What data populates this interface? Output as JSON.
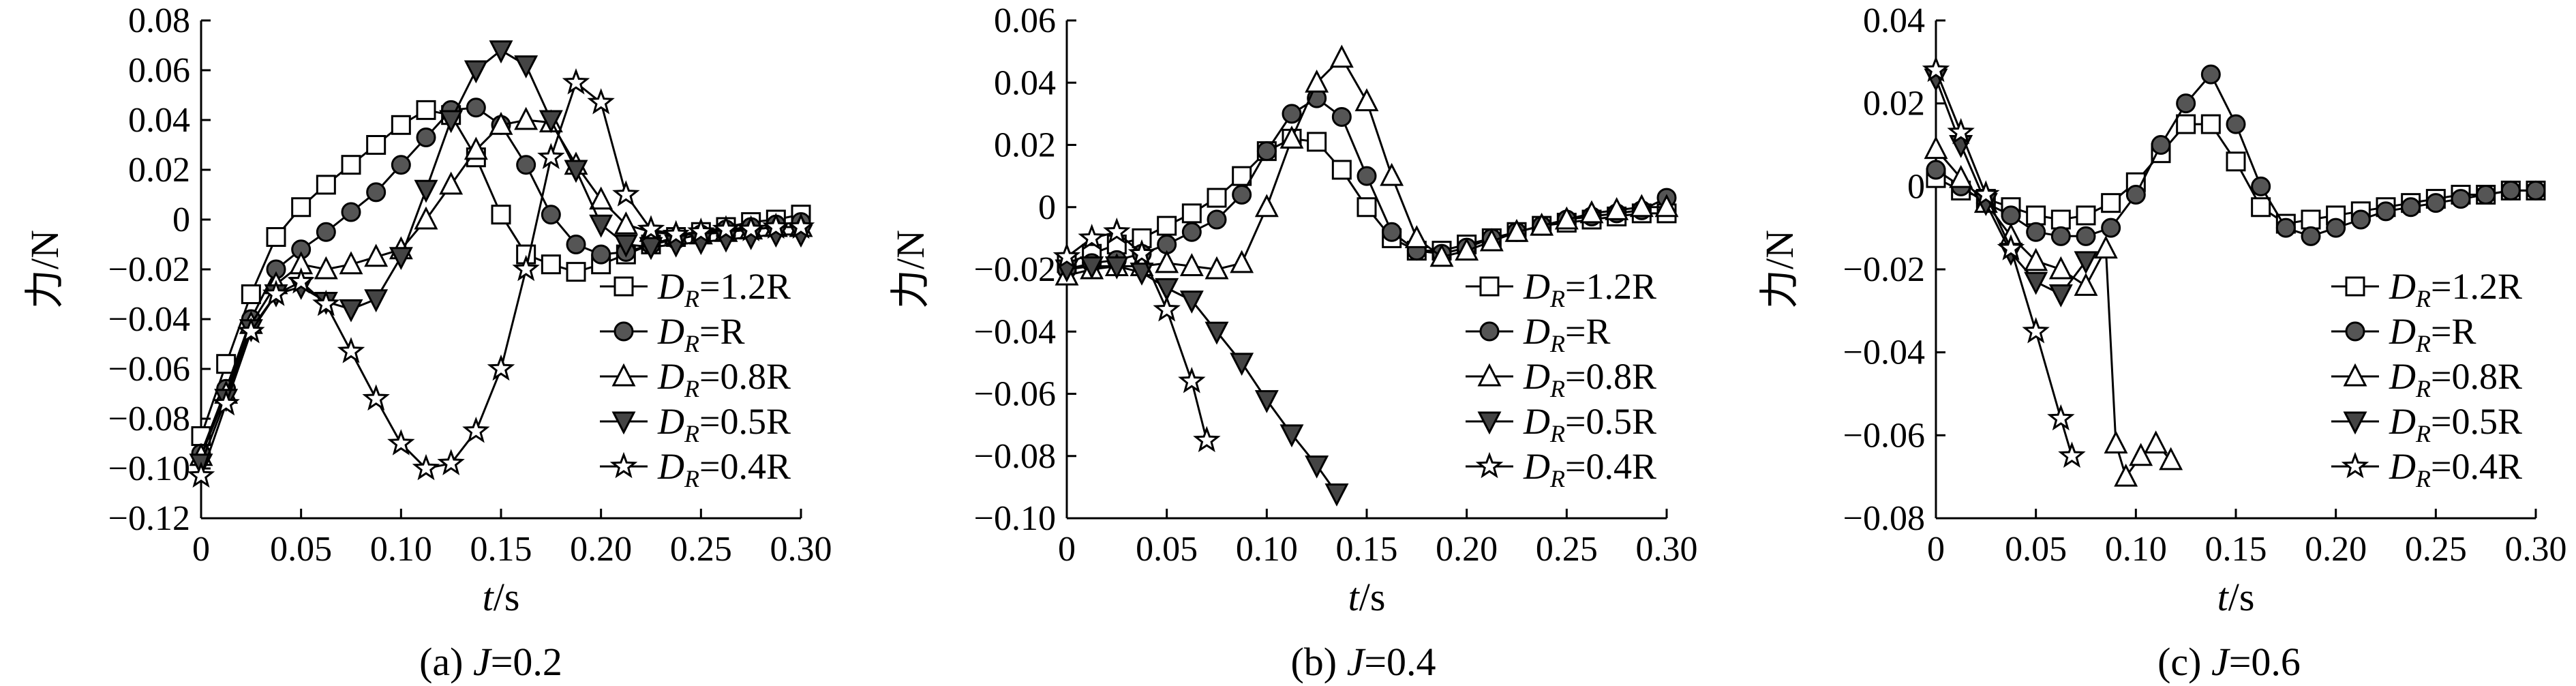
{
  "chart_data": [
    {
      "type": "line",
      "caption_prefix": "(a) ",
      "caption_var": "J",
      "caption_suffix": "=0.2",
      "ylabel": "力/N",
      "xlabel_var": "t",
      "xlabel_suffix": "/s",
      "xlim": [
        0,
        0.3
      ],
      "ylim": [
        -0.12,
        0.08
      ],
      "xticks": [
        0,
        0.05,
        0.1,
        0.15,
        0.2,
        0.25,
        0.3
      ],
      "xtick_labels": [
        "0",
        "0.05",
        "0.10",
        "0.15",
        "0.20",
        "0.25",
        "0.30"
      ],
      "yticks": [
        -0.12,
        -0.1,
        -0.08,
        -0.06,
        -0.04,
        -0.02,
        0,
        0.02,
        0.04,
        0.06,
        0.08
      ],
      "ytick_labels": [
        "−0.12",
        "−0.10",
        "−0.08",
        "−0.06",
        "−0.04",
        "−0.02",
        "0",
        "0.02",
        "0.04",
        "0.06",
        "0.08"
      ],
      "legend_position": "right",
      "series": [
        {
          "name": "D_R=1.2R",
          "legend_suffix": "=1.2R",
          "marker": "square",
          "x": [
            0,
            0.0125,
            0.025,
            0.0375,
            0.05,
            0.0625,
            0.075,
            0.0875,
            0.1,
            0.1125,
            0.125,
            0.1375,
            0.15,
            0.1625,
            0.175,
            0.1875,
            0.2,
            0.2125,
            0.225,
            0.2375,
            0.25,
            0.2625,
            0.275,
            0.2875,
            0.3
          ],
          "y": [
            -0.087,
            -0.058,
            -0.03,
            -0.007,
            0.005,
            0.014,
            0.022,
            0.03,
            0.038,
            0.044,
            0.042,
            0.025,
            0.002,
            -0.014,
            -0.018,
            -0.021,
            -0.018,
            -0.014,
            -0.01,
            -0.007,
            -0.005,
            -0.003,
            -0.001,
            0.0,
            0.002
          ]
        },
        {
          "name": "D_R=R",
          "legend_suffix": "=R",
          "marker": "circle",
          "x": [
            0,
            0.0125,
            0.025,
            0.0375,
            0.05,
            0.0625,
            0.075,
            0.0875,
            0.1,
            0.1125,
            0.125,
            0.1375,
            0.15,
            0.1625,
            0.175,
            0.1875,
            0.2,
            0.2125,
            0.225,
            0.2375,
            0.25,
            0.2625,
            0.275,
            0.2875,
            0.3
          ],
          "y": [
            -0.094,
            -0.068,
            -0.04,
            -0.02,
            -0.012,
            -0.005,
            0.003,
            0.011,
            0.022,
            0.033,
            0.044,
            0.045,
            0.038,
            0.022,
            0.002,
            -0.01,
            -0.014,
            -0.013,
            -0.01,
            -0.008,
            -0.006,
            -0.004,
            -0.003,
            -0.002,
            -0.001
          ]
        },
        {
          "name": "D_R=0.8R",
          "legend_suffix": "=0.8R",
          "marker": "triangle",
          "x": [
            0,
            0.0125,
            0.025,
            0.0375,
            0.05,
            0.0625,
            0.075,
            0.0875,
            0.1,
            0.1125,
            0.125,
            0.1375,
            0.15,
            0.1625,
            0.175,
            0.1875,
            0.2,
            0.2125,
            0.225,
            0.2375,
            0.25,
            0.2625,
            0.275,
            0.2875,
            0.3
          ],
          "y": [
            -0.095,
            -0.07,
            -0.042,
            -0.026,
            -0.018,
            -0.02,
            -0.018,
            -0.015,
            -0.012,
            0.0,
            0.014,
            0.028,
            0.038,
            0.04,
            0.039,
            0.022,
            0.008,
            -0.002,
            -0.005,
            -0.006,
            -0.006,
            -0.005,
            -0.004,
            -0.003,
            -0.003
          ]
        },
        {
          "name": "D_R=0.5R",
          "legend_suffix": "=0.5R",
          "marker": "triangle-down",
          "x": [
            0,
            0.0125,
            0.025,
            0.0375,
            0.05,
            0.0625,
            0.075,
            0.0875,
            0.1,
            0.1125,
            0.125,
            0.1375,
            0.15,
            0.1625,
            0.175,
            0.1875,
            0.2,
            0.2125,
            0.225,
            0.2375,
            0.25,
            0.2625,
            0.275,
            0.2875,
            0.3
          ],
          "y": [
            -0.098,
            -0.072,
            -0.044,
            -0.03,
            -0.027,
            -0.033,
            -0.036,
            -0.032,
            -0.015,
            0.012,
            0.04,
            0.06,
            0.068,
            0.062,
            0.04,
            0.02,
            -0.002,
            -0.01,
            -0.011,
            -0.01,
            -0.009,
            -0.008,
            -0.007,
            -0.006,
            -0.006
          ]
        },
        {
          "name": "D_R=0.4R",
          "legend_suffix": "=0.4R",
          "marker": "star",
          "x": [
            0,
            0.0125,
            0.025,
            0.0375,
            0.05,
            0.0625,
            0.075,
            0.0875,
            0.1,
            0.1125,
            0.125,
            0.1375,
            0.15,
            0.1625,
            0.175,
            0.1875,
            0.2,
            0.2125,
            0.225,
            0.2375,
            0.25,
            0.2625,
            0.275,
            0.2875,
            0.3
          ],
          "y": [
            -0.103,
            -0.074,
            -0.045,
            -0.03,
            -0.025,
            -0.034,
            -0.053,
            -0.072,
            -0.09,
            -0.1,
            -0.098,
            -0.085,
            -0.06,
            -0.02,
            0.025,
            0.055,
            0.047,
            0.01,
            -0.004,
            -0.006,
            -0.005,
            -0.004,
            -0.004,
            -0.003,
            -0.003
          ]
        }
      ]
    },
    {
      "type": "line",
      "caption_prefix": "(b) ",
      "caption_var": "J",
      "caption_suffix": "=0.4",
      "ylabel": "力/N",
      "xlabel_var": "t",
      "xlabel_suffix": "/s",
      "xlim": [
        0,
        0.3
      ],
      "ylim": [
        -0.1,
        0.06
      ],
      "xticks": [
        0,
        0.05,
        0.1,
        0.15,
        0.2,
        0.25,
        0.3
      ],
      "xtick_labels": [
        "0",
        "0.05",
        "0.10",
        "0.15",
        "0.20",
        "0.25",
        "0.30"
      ],
      "yticks": [
        -0.1,
        -0.08,
        -0.06,
        -0.04,
        -0.02,
        0,
        0.02,
        0.04,
        0.06
      ],
      "ytick_labels": [
        "−0.10",
        "−0.08",
        "−0.06",
        "−0.04",
        "−0.02",
        "0",
        "0.02",
        "0.04",
        "0.06"
      ],
      "legend_position": "right",
      "series": [
        {
          "name": "D_R=1.2R",
          "legend_suffix": "=1.2R",
          "marker": "square",
          "x": [
            0,
            0.0125,
            0.025,
            0.0375,
            0.05,
            0.0625,
            0.075,
            0.0875,
            0.1,
            0.1125,
            0.125,
            0.1375,
            0.15,
            0.1625,
            0.175,
            0.1875,
            0.2,
            0.2125,
            0.225,
            0.2375,
            0.25,
            0.2625,
            0.275,
            0.2875,
            0.3
          ],
          "y": [
            -0.018,
            -0.015,
            -0.012,
            -0.01,
            -0.006,
            -0.002,
            0.003,
            0.01,
            0.018,
            0.022,
            0.021,
            0.012,
            0.0,
            -0.01,
            -0.014,
            -0.014,
            -0.012,
            -0.01,
            -0.008,
            -0.006,
            -0.005,
            -0.004,
            -0.003,
            -0.002,
            -0.002
          ]
        },
        {
          "name": "D_R=R",
          "legend_suffix": "=R",
          "marker": "circle",
          "x": [
            0,
            0.0125,
            0.025,
            0.0375,
            0.05,
            0.0625,
            0.075,
            0.0875,
            0.1,
            0.1125,
            0.125,
            0.1375,
            0.15,
            0.1625,
            0.175,
            0.1875,
            0.2,
            0.2125,
            0.225,
            0.2375,
            0.25,
            0.2625,
            0.275,
            0.2875,
            0.3
          ],
          "y": [
            -0.02,
            -0.018,
            -0.017,
            -0.015,
            -0.012,
            -0.008,
            -0.004,
            0.004,
            0.018,
            0.03,
            0.035,
            0.029,
            0.01,
            -0.008,
            -0.014,
            -0.015,
            -0.013,
            -0.01,
            -0.008,
            -0.006,
            -0.004,
            -0.003,
            -0.002,
            -0.001,
            0.003
          ]
        },
        {
          "name": "D_R=0.8R",
          "legend_suffix": "=0.8R",
          "marker": "triangle",
          "x": [
            0,
            0.0125,
            0.025,
            0.0375,
            0.05,
            0.0625,
            0.075,
            0.0875,
            0.1,
            0.1125,
            0.125,
            0.1375,
            0.15,
            0.1625,
            0.175,
            0.1875,
            0.2,
            0.2125,
            0.225,
            0.2375,
            0.25,
            0.2625,
            0.275,
            0.2875,
            0.3
          ],
          "y": [
            -0.022,
            -0.02,
            -0.019,
            -0.019,
            -0.018,
            -0.019,
            -0.02,
            -0.018,
            0.0,
            0.022,
            0.04,
            0.048,
            0.034,
            0.01,
            -0.01,
            -0.016,
            -0.014,
            -0.011,
            -0.008,
            -0.006,
            -0.004,
            -0.002,
            -0.001,
            0.0,
            0.0
          ]
        },
        {
          "name": "D_R=0.5R",
          "legend_suffix": "=0.5R",
          "marker": "triangle-down",
          "x": [
            0,
            0.0125,
            0.025,
            0.0375,
            0.05,
            0.0625,
            0.075,
            0.0875,
            0.1,
            0.1125,
            0.125,
            0.135
          ],
          "y": [
            -0.02,
            -0.019,
            -0.019,
            -0.021,
            -0.026,
            -0.03,
            -0.04,
            -0.05,
            -0.062,
            -0.073,
            -0.083,
            -0.092
          ]
        },
        {
          "name": "D_R=0.4R",
          "legend_suffix": "=0.4R",
          "marker": "star",
          "x": [
            0,
            0.0125,
            0.025,
            0.0375,
            0.05,
            0.0625,
            0.07
          ],
          "y": [
            -0.016,
            -0.01,
            -0.008,
            -0.015,
            -0.033,
            -0.056,
            -0.075
          ]
        }
      ]
    },
    {
      "type": "line",
      "caption_prefix": "(c) ",
      "caption_var": "J",
      "caption_suffix": "=0.6",
      "ylabel": "力/N",
      "xlabel_var": "t",
      "xlabel_suffix": "/s",
      "xlim": [
        0,
        0.3
      ],
      "ylim": [
        -0.08,
        0.04
      ],
      "xticks": [
        0,
        0.05,
        0.1,
        0.15,
        0.2,
        0.25,
        0.3
      ],
      "xtick_labels": [
        "0",
        "0.05",
        "0.10",
        "0.15",
        "0.20",
        "0.25",
        "0.30"
      ],
      "yticks": [
        -0.08,
        -0.06,
        -0.04,
        -0.02,
        0,
        0.02,
        0.04
      ],
      "ytick_labels": [
        "−0.08",
        "−0.06",
        "−0.04",
        "−0.02",
        "0",
        "0.02",
        "0.04"
      ],
      "legend_position": "right",
      "series": [
        {
          "name": "D_R=1.2R",
          "legend_suffix": "=1.2R",
          "marker": "square",
          "x": [
            0,
            0.0125,
            0.025,
            0.0375,
            0.05,
            0.0625,
            0.075,
            0.0875,
            0.1,
            0.1125,
            0.125,
            0.1375,
            0.15,
            0.1625,
            0.175,
            0.1875,
            0.2,
            0.2125,
            0.225,
            0.2375,
            0.25,
            0.2625,
            0.275,
            0.2875,
            0.3
          ],
          "y": [
            0.002,
            -0.001,
            -0.003,
            -0.005,
            -0.007,
            -0.008,
            -0.007,
            -0.004,
            0.001,
            0.008,
            0.015,
            0.015,
            0.006,
            -0.005,
            -0.009,
            -0.008,
            -0.007,
            -0.006,
            -0.005,
            -0.004,
            -0.003,
            -0.002,
            -0.002,
            -0.001,
            -0.001
          ]
        },
        {
          "name": "D_R=R",
          "legend_suffix": "=R",
          "marker": "circle",
          "x": [
            0,
            0.0125,
            0.025,
            0.0375,
            0.05,
            0.0625,
            0.075,
            0.0875,
            0.1,
            0.1125,
            0.125,
            0.1375,
            0.15,
            0.1625,
            0.175,
            0.1875,
            0.2,
            0.2125,
            0.225,
            0.2375,
            0.25,
            0.2625,
            0.275,
            0.2875,
            0.3
          ],
          "y": [
            0.004,
            0.0,
            -0.004,
            -0.007,
            -0.011,
            -0.012,
            -0.012,
            -0.01,
            -0.002,
            0.01,
            0.02,
            0.027,
            0.015,
            0.0,
            -0.01,
            -0.012,
            -0.01,
            -0.008,
            -0.006,
            -0.005,
            -0.004,
            -0.003,
            -0.002,
            -0.001,
            -0.001
          ]
        },
        {
          "name": "D_R=0.8R",
          "legend_suffix": "=0.8R",
          "marker": "triangle",
          "x": [
            0,
            0.0125,
            0.025,
            0.0375,
            0.05,
            0.0625,
            0.075,
            0.085,
            0.09,
            0.095,
            0.1025,
            0.11,
            0.1175
          ],
          "y": [
            0.009,
            0.002,
            -0.004,
            -0.012,
            -0.018,
            -0.02,
            -0.024,
            -0.015,
            -0.062,
            -0.07,
            -0.065,
            -0.062,
            -0.066
          ]
        },
        {
          "name": "D_R=0.5R",
          "legend_suffix": "=0.5R",
          "marker": "triangle-down",
          "x": [
            0,
            0.0125,
            0.025,
            0.0375,
            0.05,
            0.0625,
            0.075
          ],
          "y": [
            0.026,
            0.01,
            -0.004,
            -0.016,
            -0.023,
            -0.026,
            -0.018
          ]
        },
        {
          "name": "D_R=0.4R",
          "legend_suffix": "=0.4R",
          "marker": "star",
          "x": [
            0,
            0.0125,
            0.025,
            0.0375,
            0.05,
            0.0625,
            0.068
          ],
          "y": [
            0.028,
            0.013,
            -0.002,
            -0.015,
            -0.035,
            -0.056,
            -0.065
          ]
        }
      ]
    }
  ],
  "legend_symbol_letter": "D",
  "legend_symbol_sub": "R"
}
